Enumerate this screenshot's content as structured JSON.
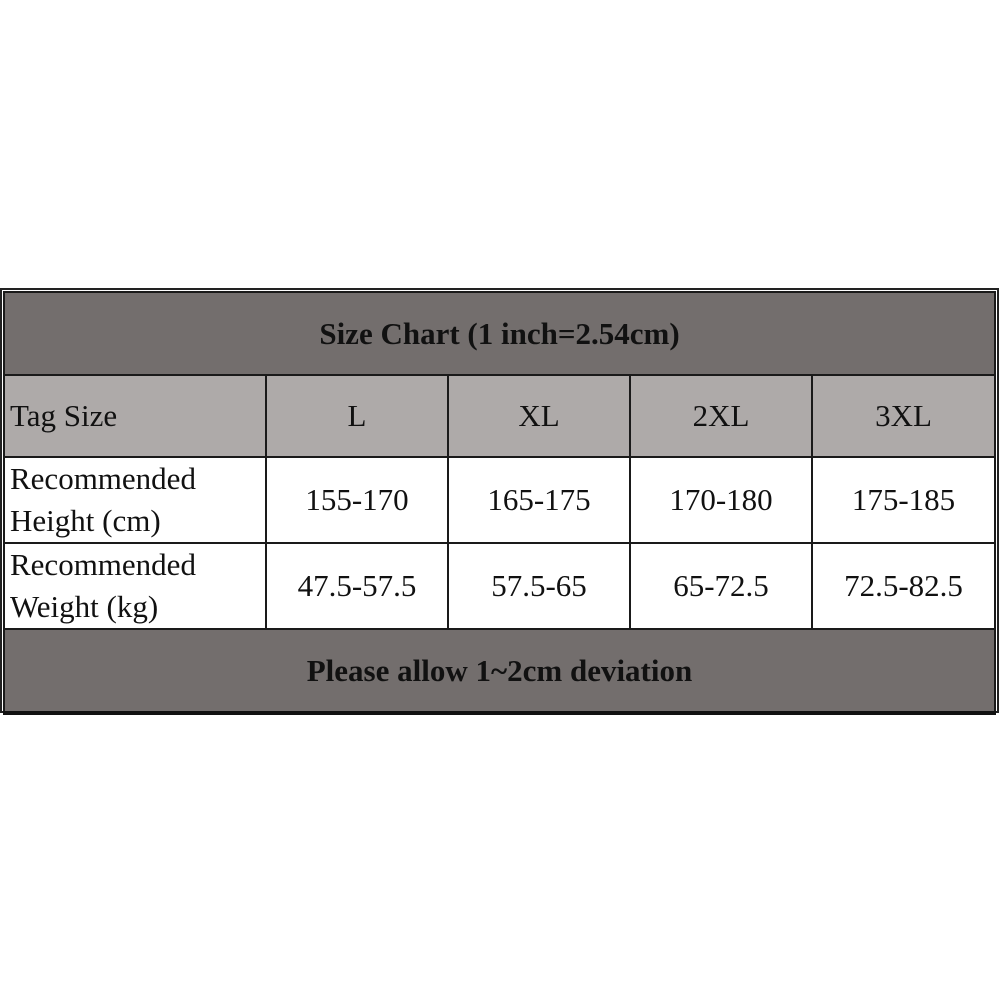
{
  "title": "Size Chart (1 inch=2.54cm)",
  "header": {
    "label": "Tag Size",
    "sizes": [
      "L",
      "XL",
      "2XL",
      "3XL"
    ]
  },
  "rows": [
    {
      "label_line1": "Recommended",
      "label_line2": "Height (cm)",
      "values": [
        "155-170",
        "165-175",
        "170-180",
        "175-185"
      ]
    },
    {
      "label_line1": "Recommended",
      "label_line2": "Weight (kg)",
      "values": [
        "47.5-57.5",
        "57.5-65",
        "65-72.5",
        "72.5-82.5"
      ]
    }
  ],
  "footer": "Please allow 1~2cm deviation",
  "colors": {
    "header_bg": "#736e6d",
    "subheader_bg": "#aeaaa9"
  }
}
